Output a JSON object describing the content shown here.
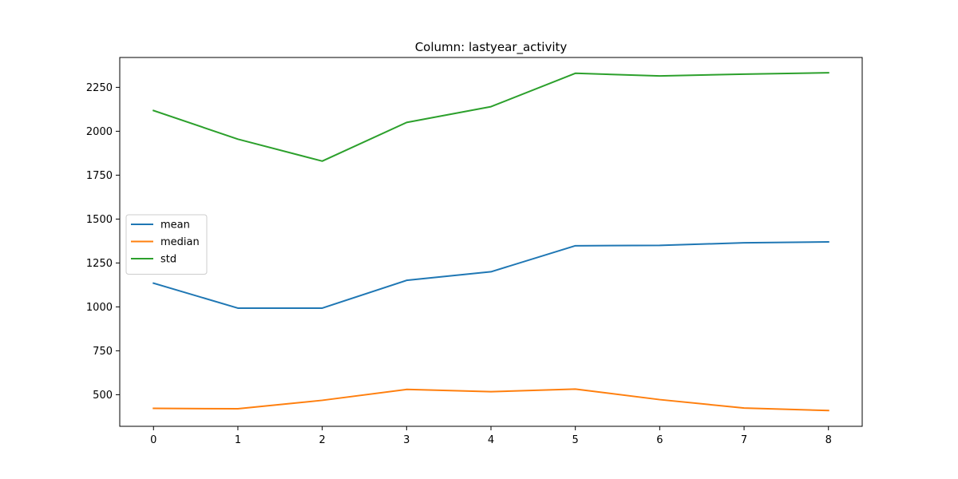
{
  "chart_data": {
    "type": "line",
    "title": "Column: lastyear_activity",
    "xlabel": "",
    "ylabel": "",
    "x": [
      0,
      1,
      2,
      3,
      4,
      5,
      6,
      7,
      8
    ],
    "xlim": [
      -0.4,
      8.4
    ],
    "ylim": [
      320,
      2420
    ],
    "xticks": [
      0,
      1,
      2,
      3,
      4,
      5,
      6,
      7,
      8
    ],
    "yticks": [
      500,
      750,
      1000,
      1250,
      1500,
      1750,
      2000,
      2250
    ],
    "grid": false,
    "legend_position": "center-left",
    "series": [
      {
        "name": "mean",
        "color": "#1f77b4",
        "values": [
          1135,
          993,
          993,
          1151,
          1200,
          1348,
          1350,
          1365,
          1370
        ]
      },
      {
        "name": "median",
        "color": "#ff7f0e",
        "values": [
          422,
          420,
          468,
          530,
          517,
          532,
          472,
          424,
          410
        ]
      },
      {
        "name": "std",
        "color": "#2ca02c",
        "values": [
          2118,
          1955,
          1830,
          2050,
          2140,
          2330,
          2315,
          2325,
          2333
        ]
      }
    ]
  }
}
